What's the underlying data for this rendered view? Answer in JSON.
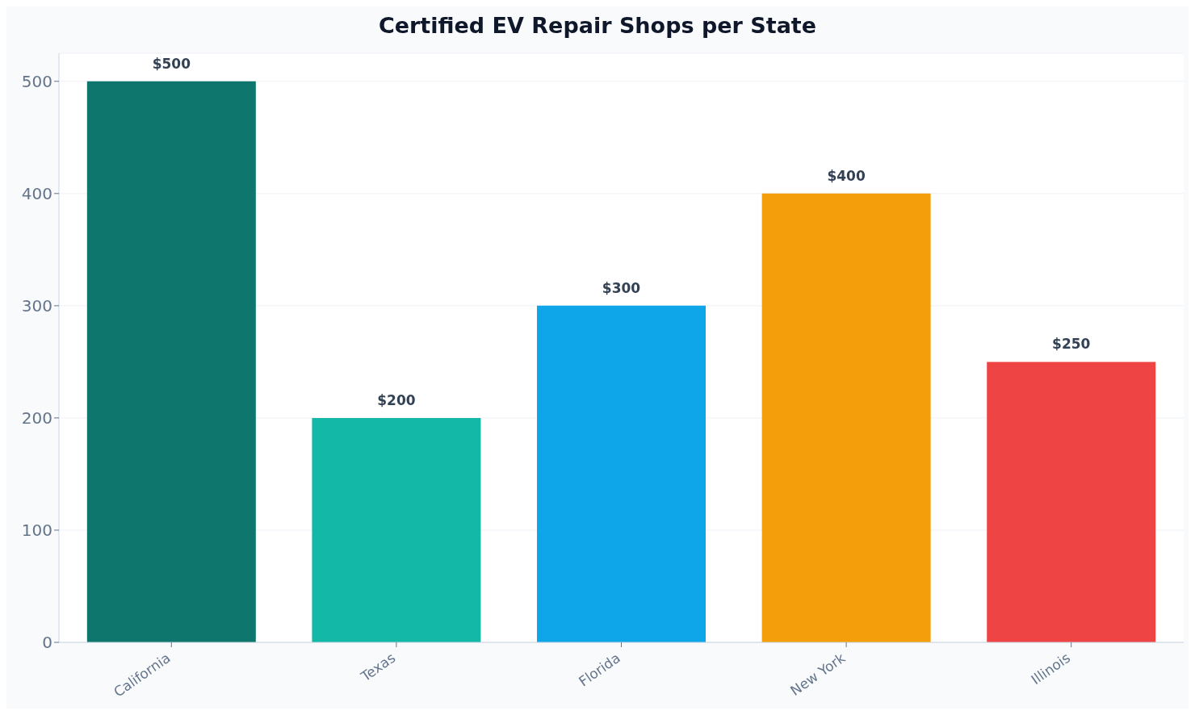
{
  "chart_data": {
    "type": "bar",
    "title": "Certified EV Repair Shops per State",
    "categories": [
      "California",
      "Texas",
      "Florida",
      "New York",
      "Illinois"
    ],
    "values": [
      500,
      200,
      300,
      400,
      250
    ],
    "colors": [
      "#0f766e",
      "#14b8a6",
      "#0ea5e9",
      "#f59e0b",
      "#ef4444"
    ],
    "value_labels": [
      "$500",
      "$200",
      "$300",
      "$400",
      "$250"
    ],
    "ylim": [
      0,
      525
    ],
    "yticks": [
      0,
      100,
      200,
      300,
      400,
      500
    ],
    "grid": "y"
  }
}
